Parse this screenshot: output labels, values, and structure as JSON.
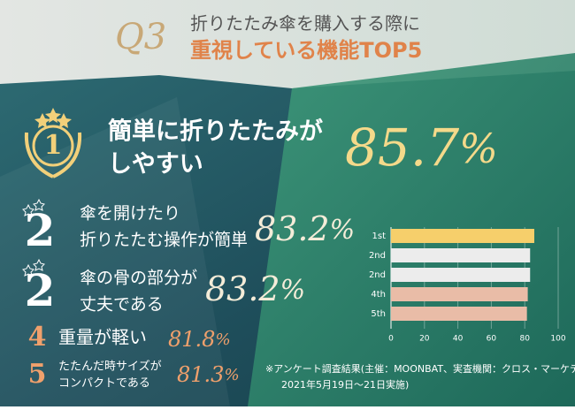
{
  "header": {
    "q": "Q3",
    "line1": "折りたたみ傘を購入する際に",
    "line2": "重視している機能TOP5"
  },
  "ranking": [
    {
      "rank": "1",
      "lines": [
        "簡単に折りたたみが",
        "しやすい"
      ],
      "value": 85.7,
      "unit": "%"
    },
    {
      "rank": "2",
      "lines": [
        "傘を開けたり",
        "折りたたむ操作が簡単"
      ],
      "value": 83.2,
      "unit": "%"
    },
    {
      "rank": "2",
      "lines": [
        "傘の骨の部分が",
        "丈夫である"
      ],
      "value": 83.2,
      "unit": "%"
    },
    {
      "rank": "4",
      "lines": [
        "重量が軽い"
      ],
      "value": 81.8,
      "unit": "%"
    },
    {
      "rank": "5",
      "lines": [
        "たたんだ時サイズが",
        "コンパクトである"
      ],
      "value": 81.3,
      "unit": "%"
    }
  ],
  "chart_data": {
    "type": "hbar",
    "categories": [
      "1st",
      "2nd",
      "2nd",
      "4th",
      "5th"
    ],
    "values": [
      85.7,
      83.2,
      83.2,
      81.8,
      81.3
    ],
    "colors": [
      "#f6cf6b",
      "#ececec",
      "#ececec",
      "#e9bca7",
      "#e9bca7"
    ],
    "xlim": [
      0,
      100
    ],
    "xticks": [
      0,
      20,
      40,
      60,
      80,
      100
    ],
    "grid": true
  },
  "footnote": [
    "※アンケート調査結果(主催：MOONBAT、実査機関：クロス・マーケティング、",
    "2021年5月19日～21日実施)"
  ]
}
